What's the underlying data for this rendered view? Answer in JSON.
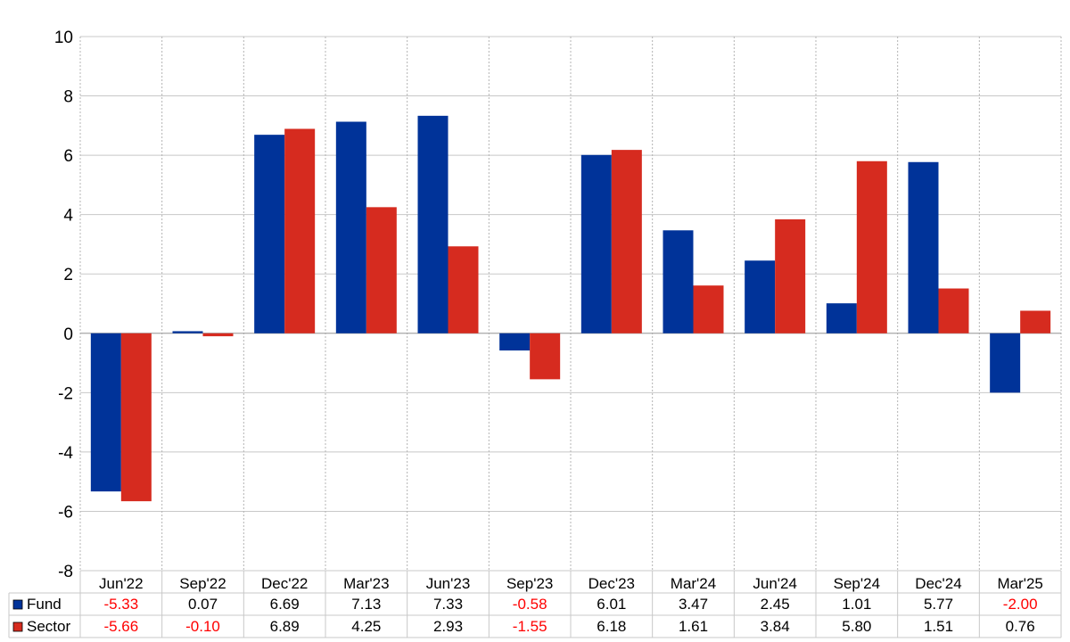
{
  "chart_data": {
    "type": "bar",
    "categories": [
      "Jun'22",
      "Sep'22",
      "Dec'22",
      "Mar'23",
      "Jun'23",
      "Sep'23",
      "Dec'23",
      "Mar'24",
      "Jun'24",
      "Sep'24",
      "Dec'24",
      "Mar'25"
    ],
    "series": [
      {
        "name": "Fund",
        "color": "#003399",
        "values": [
          -5.33,
          0.07,
          6.69,
          7.13,
          7.33,
          -0.58,
          6.01,
          3.47,
          2.45,
          1.01,
          5.77,
          -2.0
        ],
        "labels": [
          "-5.33",
          "0.07",
          "6.69",
          "7.13",
          "7.33",
          "-0.58",
          "6.01",
          "3.47",
          "2.45",
          "1.01",
          "5.77",
          "-2.00"
        ]
      },
      {
        "name": "Sector",
        "color": "#d62b1f",
        "values": [
          -5.66,
          -0.1,
          6.89,
          4.25,
          2.93,
          -1.55,
          6.18,
          1.61,
          3.84,
          5.8,
          1.51,
          0.76
        ],
        "labels": [
          "-5.66",
          "-0.10",
          "6.89",
          "4.25",
          "2.93",
          "-1.55",
          "6.18",
          "1.61",
          "3.84",
          "5.80",
          "1.51",
          "0.76"
        ]
      }
    ],
    "ylim": [
      -8,
      10
    ],
    "yticks": [
      "-8",
      "-6",
      "-4",
      "-2",
      "0",
      "2",
      "4",
      "6",
      "8",
      "10"
    ],
    "yticks_values": [
      -8,
      -6,
      -4,
      -2,
      0,
      2,
      4,
      6,
      8,
      10
    ],
    "negative_color": "#ff0000",
    "grid": true,
    "legend": "table below chart"
  }
}
